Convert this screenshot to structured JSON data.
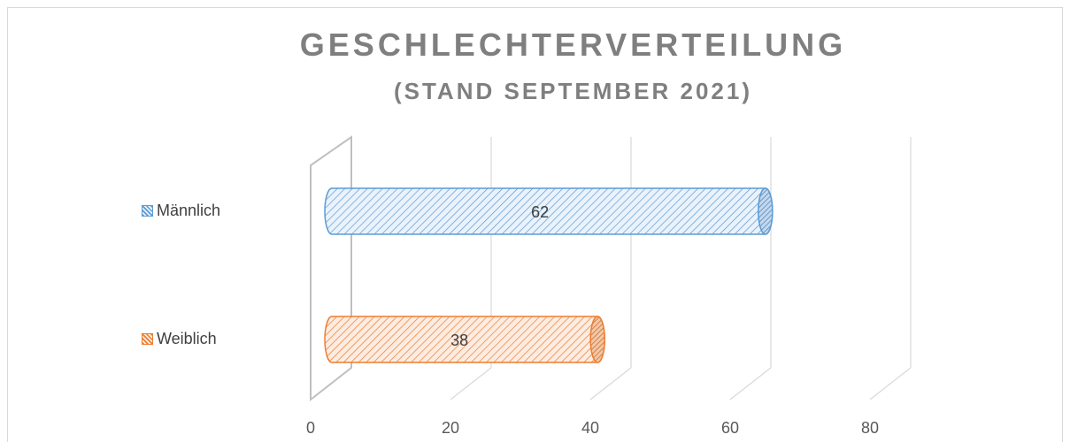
{
  "chart_data": {
    "type": "bar",
    "orientation": "horizontal",
    "style": "3d-cylinder",
    "title": "GESCHLECHTERVERTEILUNG",
    "subtitle": "(STAND SEPTEMBER 2021)",
    "categories": [
      "Männlich",
      "Weiblich"
    ],
    "values": [
      62,
      38
    ],
    "data_labels": [
      "62",
      "38"
    ],
    "xlim": [
      0,
      80
    ],
    "x_ticks": [
      "0",
      "20",
      "40",
      "60",
      "80"
    ],
    "grid": true,
    "legend": "left",
    "colors": {
      "male": "#5b9bd5",
      "female": "#ed7d31",
      "grid": "#d9d9d9",
      "text": "#595959",
      "title": "#7f7f7f"
    }
  }
}
